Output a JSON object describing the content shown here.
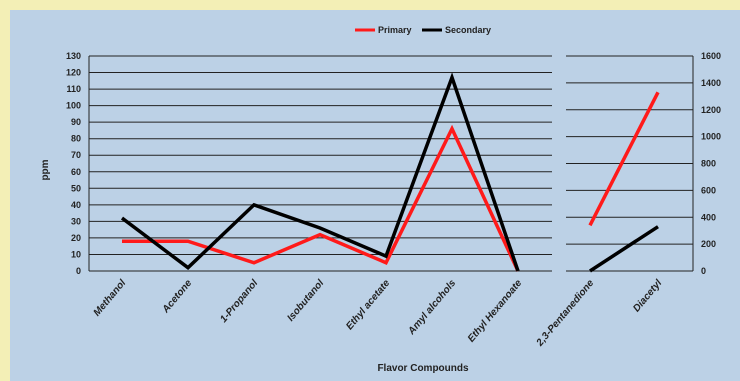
{
  "chart_data": {
    "type": "line",
    "xlabel": "Flavor Compounds",
    "ylabel": "ppm",
    "legend_position": "top-center",
    "grid": true,
    "series_colors": {
      "Primary": "#ff1a1a",
      "Secondary": "#000000"
    },
    "left_panel": {
      "categories": [
        "Methanol",
        "Acetone",
        "1-Propanol",
        "Isobutanol",
        "Ethyl acetate",
        "Amyl alcohols",
        "Ethyl Hexanoate"
      ],
      "ylim": [
        0,
        130
      ],
      "yticks": [
        0,
        10,
        20,
        30,
        40,
        50,
        60,
        70,
        80,
        90,
        100,
        110,
        120,
        130
      ],
      "series": [
        {
          "name": "Primary",
          "values": [
            18,
            18,
            5,
            22,
            5,
            86,
            0
          ]
        },
        {
          "name": "Secondary",
          "values": [
            32,
            2,
            40,
            26,
            9,
            117,
            0
          ]
        }
      ]
    },
    "right_panel": {
      "categories": [
        "2,3-Pentanedione",
        "Diacetyl"
      ],
      "ylim": [
        0,
        1600
      ],
      "yticks": [
        0,
        200,
        400,
        600,
        800,
        1000,
        1200,
        1400,
        1600
      ],
      "series": [
        {
          "name": "Primary",
          "values": [
            340,
            1330
          ]
        },
        {
          "name": "Secondary",
          "values": [
            0,
            330
          ]
        }
      ]
    }
  }
}
